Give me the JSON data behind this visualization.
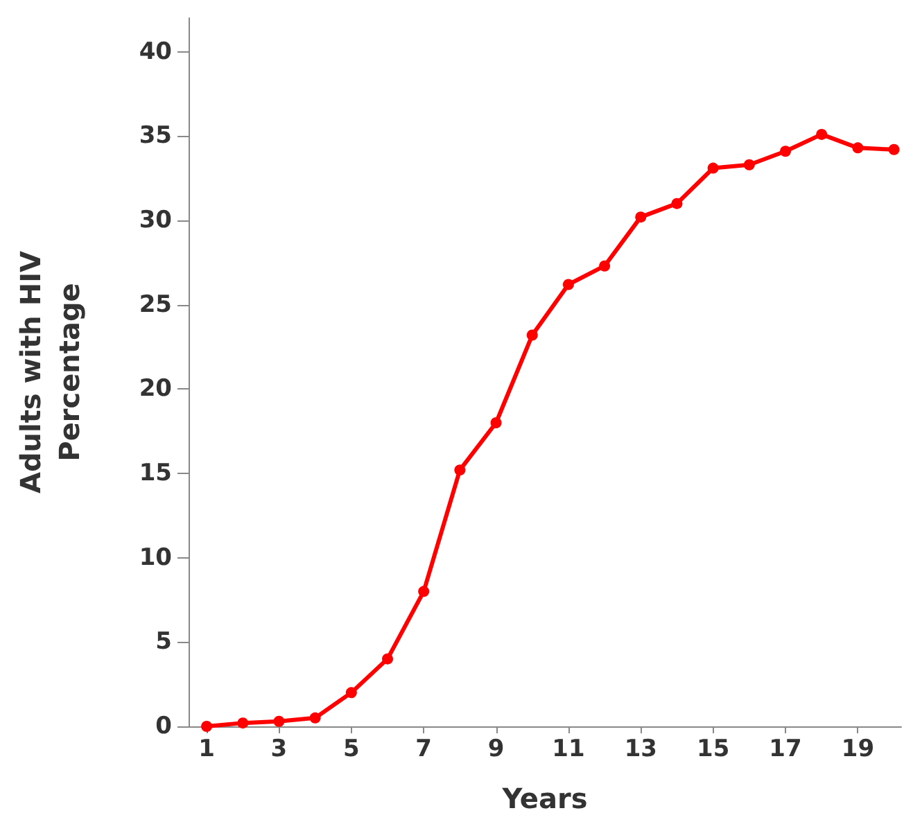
{
  "chart_data": {
    "type": "line",
    "xlabel": "Years",
    "ylabel": "Adults with HIV\nPercentage",
    "x": [
      1,
      2,
      3,
      4,
      5,
      6,
      7,
      8,
      9,
      10,
      11,
      12,
      13,
      14,
      15,
      16,
      17,
      18,
      19,
      20
    ],
    "series": [
      {
        "color": "#ff0000",
        "values": [
          0,
          0.2,
          0.3,
          0.5,
          2,
          4,
          8,
          15.2,
          18,
          23.2,
          26.2,
          27.3,
          30.2,
          31,
          33.1,
          33.3,
          34.1,
          35.1,
          34.3,
          34.2
        ]
      }
    ],
    "xlim": [
      0.5,
      20.2
    ],
    "xticks": [
      1,
      3,
      5,
      7,
      9,
      11,
      13,
      15,
      17,
      19
    ],
    "ylim": [
      0,
      42
    ],
    "yticks": [
      0,
      5,
      10,
      15,
      20,
      25,
      30,
      35,
      40
    ],
    "grid": false,
    "marker": "circle",
    "line_style": "solid"
  }
}
